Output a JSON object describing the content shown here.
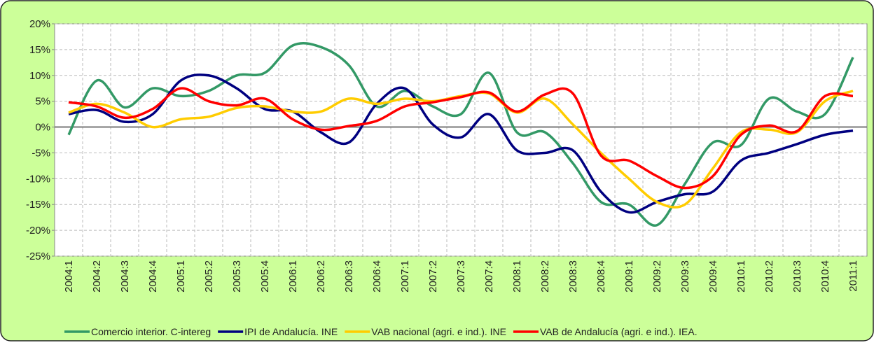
{
  "chart_data": {
    "type": "line",
    "categories": [
      "2004:1",
      "2004:2",
      "2004:3",
      "2004:4",
      "2005:1",
      "2005:2",
      "2005:3",
      "2005:4",
      "2006:1",
      "2006:2",
      "2006:3",
      "2006:4",
      "2007:1",
      "2007:2",
      "2007:3",
      "2007:4",
      "2008:1",
      "2008:2",
      "2008:3",
      "2008:4",
      "2009:1",
      "2009:2",
      "2009:3",
      "2009:4",
      "2010:1",
      "2010:2",
      "2010:3",
      "2010:4",
      "2011:1"
    ],
    "series": [
      {
        "name": "Comercio interior. C-intereg",
        "color": "#339966",
        "values": [
          -1.5,
          9,
          3.8,
          7.5,
          6,
          7,
          10,
          10.5,
          15.8,
          15.5,
          12,
          4,
          7,
          4,
          2.5,
          10.5,
          -1,
          -1,
          -7,
          -14.5,
          -15,
          -19,
          -11,
          -3,
          -3.5,
          5.5,
          3,
          2.5,
          13.5
        ]
      },
      {
        "name": "IPI de Andalucía. INE",
        "color": "#000080",
        "values": [
          2.5,
          3.3,
          1,
          2.5,
          9,
          10,
          7.5,
          3.5,
          3,
          -1,
          -3,
          4.5,
          7.5,
          0.5,
          -2,
          2.5,
          -4.5,
          -5,
          -4.5,
          -12.5,
          -16.5,
          -14.5,
          -13,
          -12.5,
          -6.5,
          -5,
          -3.3,
          -1.5,
          -0.7
        ]
      },
      {
        "name": "VAB nacional (agri. e ind.). INE",
        "color": "#ffcc00",
        "values": [
          2.8,
          4.5,
          2.8,
          0,
          1.5,
          2,
          3.7,
          4,
          3,
          3,
          5.5,
          4.5,
          5.5,
          5,
          6,
          6.5,
          2.8,
          5.5,
          0.5,
          -5,
          -10,
          -14.5,
          -15,
          -8,
          -1,
          -0.5,
          -1,
          5,
          7
        ]
      },
      {
        "name": "VAB de Andalucía (agri. e ind.). IEA.",
        "color": "#ff0000",
        "values": [
          4.8,
          4,
          1.8,
          3.5,
          7.5,
          5,
          4.2,
          5.5,
          1.5,
          -0.5,
          0.2,
          1.2,
          4,
          4.8,
          5.8,
          6.7,
          3,
          6.3,
          6.5,
          -5.5,
          -6.5,
          -9.5,
          -11.8,
          -9.5,
          -1.5,
          0.3,
          -0.8,
          6,
          6
        ]
      }
    ],
    "ylim": [
      -25,
      20
    ],
    "yticks": [
      {
        "value": -25,
        "label": "-25%"
      },
      {
        "value": -20,
        "label": "-20%"
      },
      {
        "value": -15,
        "label": "-15%"
      },
      {
        "value": -10,
        "label": "-10%"
      },
      {
        "value": -5,
        "label": "-5%"
      },
      {
        "value": 0,
        "label": "0%"
      },
      {
        "value": 5,
        "label": "5%"
      },
      {
        "value": 10,
        "label": "10%"
      },
      {
        "value": 15,
        "label": "15%"
      },
      {
        "value": 20,
        "label": "20%"
      }
    ],
    "grid": true,
    "legend": "bottom"
  }
}
